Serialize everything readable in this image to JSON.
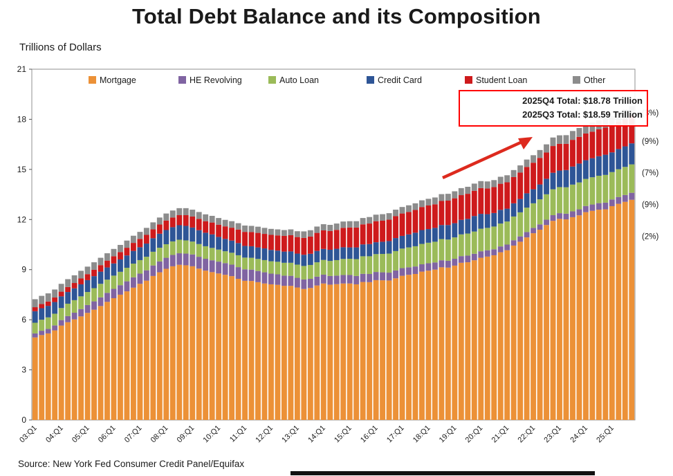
{
  "title": "Total Debt Balance and its Composition",
  "units_label": "Trillions of Dollars",
  "source": "Source: New York Fed Consumer Credit Panel/Equifax",
  "annotation_box": {
    "line1": "2025Q4 Total: $18.78 Trillion",
    "line2": "2025Q3 Total: $18.59 Trillion",
    "border_color": "#FF0000"
  },
  "arrow_color": "#DD2A1E",
  "side_labels": [
    {
      "label": "(3%)",
      "at_value": 18.4
    },
    {
      "label": "(9%)",
      "at_value": 16.7
    },
    {
      "label": "(7%)",
      "at_value": 14.8
    },
    {
      "label": "(9%)",
      "at_value": 12.9
    },
    {
      "label": "(2%)",
      "at_value": 11.0
    }
  ],
  "chart_data": {
    "type": "bar",
    "stacked": true,
    "title": "Total Debt Balance and its Composition",
    "xlabel": "",
    "ylabel": "Trillions of Dollars",
    "ylim": [
      0,
      21
    ],
    "yticks": [
      0,
      3,
      6,
      9,
      12,
      15,
      18,
      21
    ],
    "grid": false,
    "legend_position": "top-inside",
    "categories": [
      "03:Q1",
      "03:Q2",
      "03:Q3",
      "03:Q4",
      "04:Q1",
      "04:Q2",
      "04:Q3",
      "04:Q4",
      "05:Q1",
      "05:Q2",
      "05:Q3",
      "05:Q4",
      "06:Q1",
      "06:Q2",
      "06:Q3",
      "06:Q4",
      "07:Q1",
      "07:Q2",
      "07:Q3",
      "07:Q4",
      "08:Q1",
      "08:Q2",
      "08:Q3",
      "08:Q4",
      "09:Q1",
      "09:Q2",
      "09:Q3",
      "09:Q4",
      "10:Q1",
      "10:Q2",
      "10:Q3",
      "10:Q4",
      "11:Q1",
      "11:Q2",
      "11:Q3",
      "11:Q4",
      "12:Q1",
      "12:Q2",
      "12:Q3",
      "12:Q4",
      "13:Q1",
      "13:Q2",
      "13:Q3",
      "13:Q4",
      "14:Q1",
      "14:Q2",
      "14:Q3",
      "14:Q4",
      "15:Q1",
      "15:Q2",
      "15:Q3",
      "15:Q4",
      "16:Q1",
      "16:Q2",
      "16:Q3",
      "16:Q4",
      "17:Q1",
      "17:Q2",
      "17:Q3",
      "17:Q4",
      "18:Q1",
      "18:Q2",
      "18:Q3",
      "18:Q4",
      "19:Q1",
      "19:Q2",
      "19:Q3",
      "19:Q4",
      "20:Q1",
      "20:Q2",
      "20:Q3",
      "20:Q4",
      "21:Q1",
      "21:Q2",
      "21:Q3",
      "21:Q4",
      "22:Q1",
      "22:Q2",
      "22:Q3",
      "22:Q4",
      "23:Q1",
      "23:Q2",
      "23:Q3",
      "23:Q4",
      "24:Q1",
      "24:Q2",
      "24:Q3",
      "24:Q4",
      "25:Q1",
      "25:Q2",
      "25:Q3",
      "25:Q4"
    ],
    "series": [
      {
        "name": "Mortgage",
        "key": "mortgage",
        "color": "#EC9137",
        "values": [
          4.94,
          5.08,
          5.18,
          5.36,
          5.65,
          5.85,
          6.02,
          6.2,
          6.41,
          6.6,
          6.82,
          7.07,
          7.29,
          7.5,
          7.7,
          7.92,
          8.15,
          8.34,
          8.62,
          8.84,
          9.05,
          9.2,
          9.29,
          9.26,
          9.2,
          9.06,
          8.94,
          8.85,
          8.77,
          8.69,
          8.61,
          8.45,
          8.33,
          8.32,
          8.25,
          8.17,
          8.12,
          8.09,
          8.03,
          8.03,
          7.93,
          7.84,
          7.9,
          8.05,
          8.17,
          8.1,
          8.13,
          8.17,
          8.17,
          8.12,
          8.26,
          8.25,
          8.37,
          8.36,
          8.35,
          8.48,
          8.63,
          8.69,
          8.74,
          8.88,
          8.94,
          9.0,
          9.14,
          9.12,
          9.24,
          9.41,
          9.44,
          9.56,
          9.71,
          9.78,
          9.86,
          10.04,
          10.16,
          10.44,
          10.67,
          10.93,
          11.18,
          11.39,
          11.67,
          11.92,
          12.04,
          12.01,
          12.14,
          12.25,
          12.44,
          12.52,
          12.59,
          12.61,
          12.8,
          12.94,
          13.06,
          13.18
        ]
      },
      {
        "name": "HE Revolving",
        "key": "he-revolving",
        "color": "#8064A2",
        "values": [
          0.24,
          0.26,
          0.27,
          0.3,
          0.33,
          0.37,
          0.4,
          0.44,
          0.47,
          0.5,
          0.52,
          0.54,
          0.56,
          0.57,
          0.6,
          0.62,
          0.61,
          0.62,
          0.63,
          0.65,
          0.66,
          0.68,
          0.69,
          0.7,
          0.71,
          0.71,
          0.71,
          0.71,
          0.71,
          0.7,
          0.69,
          0.7,
          0.69,
          0.68,
          0.67,
          0.67,
          0.64,
          0.63,
          0.61,
          0.6,
          0.58,
          0.57,
          0.55,
          0.53,
          0.53,
          0.52,
          0.51,
          0.51,
          0.51,
          0.5,
          0.49,
          0.49,
          0.49,
          0.48,
          0.47,
          0.47,
          0.46,
          0.45,
          0.45,
          0.44,
          0.44,
          0.43,
          0.42,
          0.41,
          0.41,
          0.4,
          0.4,
          0.39,
          0.39,
          0.38,
          0.36,
          0.35,
          0.34,
          0.32,
          0.32,
          0.32,
          0.32,
          0.32,
          0.32,
          0.34,
          0.34,
          0.34,
          0.35,
          0.36,
          0.37,
          0.38,
          0.39,
          0.4,
          0.4,
          0.41,
          0.41,
          0.42
        ]
      },
      {
        "name": "Auto Loan",
        "key": "auto-loan",
        "color": "#9BBB59",
        "values": [
          0.64,
          0.66,
          0.69,
          0.7,
          0.72,
          0.74,
          0.75,
          0.76,
          0.78,
          0.79,
          0.81,
          0.79,
          0.79,
          0.8,
          0.81,
          0.82,
          0.81,
          0.81,
          0.82,
          0.82,
          0.81,
          0.81,
          0.81,
          0.79,
          0.77,
          0.76,
          0.75,
          0.74,
          0.72,
          0.71,
          0.71,
          0.71,
          0.7,
          0.71,
          0.72,
          0.73,
          0.74,
          0.75,
          0.77,
          0.78,
          0.79,
          0.81,
          0.83,
          0.86,
          0.88,
          0.9,
          0.93,
          0.96,
          0.97,
          1.01,
          1.05,
          1.06,
          1.07,
          1.1,
          1.14,
          1.16,
          1.17,
          1.19,
          1.21,
          1.22,
          1.23,
          1.24,
          1.27,
          1.27,
          1.28,
          1.3,
          1.32,
          1.33,
          1.35,
          1.34,
          1.36,
          1.37,
          1.38,
          1.42,
          1.44,
          1.46,
          1.47,
          1.5,
          1.52,
          1.55,
          1.56,
          1.58,
          1.6,
          1.61,
          1.62,
          1.63,
          1.64,
          1.66,
          1.64,
          1.66,
          1.68,
          1.7
        ]
      },
      {
        "name": "Credit Card",
        "key": "credit-card",
        "color": "#2E5596",
        "values": [
          0.69,
          0.69,
          0.69,
          0.7,
          0.7,
          0.7,
          0.71,
          0.72,
          0.71,
          0.72,
          0.73,
          0.73,
          0.73,
          0.74,
          0.74,
          0.76,
          0.77,
          0.79,
          0.81,
          0.84,
          0.85,
          0.85,
          0.87,
          0.87,
          0.84,
          0.83,
          0.81,
          0.81,
          0.76,
          0.74,
          0.73,
          0.73,
          0.7,
          0.69,
          0.69,
          0.7,
          0.68,
          0.67,
          0.67,
          0.68,
          0.66,
          0.67,
          0.67,
          0.68,
          0.66,
          0.67,
          0.68,
          0.7,
          0.68,
          0.7,
          0.71,
          0.73,
          0.71,
          0.73,
          0.75,
          0.78,
          0.76,
          0.78,
          0.81,
          0.83,
          0.82,
          0.83,
          0.84,
          0.87,
          0.85,
          0.87,
          0.88,
          0.93,
          0.89,
          0.82,
          0.81,
          0.82,
          0.77,
          0.79,
          0.8,
          0.86,
          0.84,
          0.89,
          0.93,
          0.99,
          0.99,
          1.03,
          1.08,
          1.13,
          1.12,
          1.14,
          1.17,
          1.21,
          1.18,
          1.21,
          1.23,
          1.26
        ]
      },
      {
        "name": "Student Loan",
        "key": "student-loan",
        "color": "#CE1A1C",
        "values": [
          0.24,
          0.25,
          0.26,
          0.27,
          0.28,
          0.3,
          0.32,
          0.35,
          0.36,
          0.38,
          0.39,
          0.41,
          0.43,
          0.44,
          0.46,
          0.48,
          0.5,
          0.52,
          0.53,
          0.55,
          0.57,
          0.58,
          0.6,
          0.64,
          0.66,
          0.68,
          0.69,
          0.71,
          0.73,
          0.75,
          0.77,
          0.81,
          0.84,
          0.85,
          0.87,
          0.87,
          0.9,
          0.91,
          0.94,
          0.97,
          0.99,
          1.01,
          1.03,
          1.08,
          1.11,
          1.12,
          1.13,
          1.16,
          1.19,
          1.19,
          1.2,
          1.23,
          1.26,
          1.26,
          1.28,
          1.31,
          1.34,
          1.34,
          1.36,
          1.38,
          1.41,
          1.41,
          1.44,
          1.46,
          1.49,
          1.48,
          1.5,
          1.51,
          1.54,
          1.54,
          1.55,
          1.56,
          1.58,
          1.57,
          1.58,
          1.58,
          1.59,
          1.59,
          1.57,
          1.6,
          1.6,
          1.57,
          1.6,
          1.6,
          1.6,
          1.59,
          1.61,
          1.62,
          1.63,
          1.64,
          1.66,
          1.67
        ]
      },
      {
        "name": "Other",
        "key": "other",
        "color": "#8C8C8C",
        "values": [
          0.48,
          0.49,
          0.49,
          0.48,
          0.47,
          0.47,
          0.46,
          0.46,
          0.45,
          0.45,
          0.44,
          0.44,
          0.44,
          0.43,
          0.43,
          0.43,
          0.42,
          0.42,
          0.42,
          0.42,
          0.42,
          0.42,
          0.42,
          0.42,
          0.41,
          0.41,
          0.41,
          0.4,
          0.4,
          0.39,
          0.39,
          0.38,
          0.38,
          0.37,
          0.37,
          0.36,
          0.36,
          0.36,
          0.35,
          0.35,
          0.35,
          0.39,
          0.38,
          0.38,
          0.37,
          0.37,
          0.38,
          0.38,
          0.38,
          0.38,
          0.38,
          0.39,
          0.39,
          0.39,
          0.39,
          0.39,
          0.39,
          0.4,
          0.4,
          0.4,
          0.4,
          0.41,
          0.41,
          0.41,
          0.42,
          0.42,
          0.42,
          0.43,
          0.42,
          0.42,
          0.42,
          0.42,
          0.42,
          0.42,
          0.43,
          0.44,
          0.45,
          0.47,
          0.49,
          0.51,
          0.51,
          0.52,
          0.53,
          0.53,
          0.54,
          0.54,
          0.54,
          0.54,
          0.55,
          0.55,
          0.55,
          0.55
        ]
      }
    ]
  }
}
